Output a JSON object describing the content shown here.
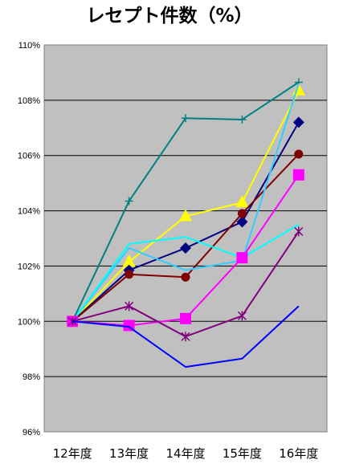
{
  "chart_data": {
    "type": "line",
    "title": "レセプト件数（%）",
    "xlabel": "",
    "ylabel": "",
    "categories": [
      "12年度",
      "13年度",
      "14年度",
      "15年度",
      "16年度"
    ],
    "ylim": [
      96,
      110
    ],
    "yticks": [
      "96%",
      "98%",
      "100%",
      "102%",
      "104%",
      "106%",
      "108%",
      "110%"
    ],
    "ytick_values": [
      96,
      98,
      100,
      102,
      104,
      106,
      108,
      110
    ],
    "grid": true,
    "plot_background": "#c0c0c0",
    "legend": "none",
    "series": [
      {
        "color": "#008080",
        "marker": "plus",
        "values": [
          100.0,
          104.35,
          107.35,
          107.3,
          108.65
        ]
      },
      {
        "color": "#ffff00",
        "marker": "triangle",
        "values": [
          100.0,
          102.15,
          103.8,
          104.3,
          108.35
        ]
      },
      {
        "color": "#000080",
        "marker": "diamond",
        "values": [
          100.0,
          101.85,
          102.65,
          103.6,
          107.2
        ]
      },
      {
        "color": "#800000",
        "marker": "circle",
        "values": [
          100.0,
          101.7,
          101.6,
          103.9,
          106.05
        ]
      },
      {
        "color": "#33ccff",
        "marker": "none",
        "values": [
          100.0,
          102.65,
          101.85,
          102.2,
          108.6
        ]
      },
      {
        "color": "#00ffff",
        "marker": "none",
        "values": [
          100.0,
          102.8,
          103.05,
          102.3,
          103.5
        ]
      },
      {
        "color": "#ff00ff",
        "marker": "square",
        "values": [
          100.0,
          99.85,
          100.1,
          102.3,
          105.3
        ]
      },
      {
        "color": "#800080",
        "marker": "star",
        "values": [
          100.0,
          100.55,
          99.45,
          100.2,
          103.25
        ]
      },
      {
        "color": "#0000ff",
        "marker": "none",
        "values": [
          100.0,
          99.8,
          98.35,
          98.65,
          100.55
        ]
      }
    ]
  }
}
